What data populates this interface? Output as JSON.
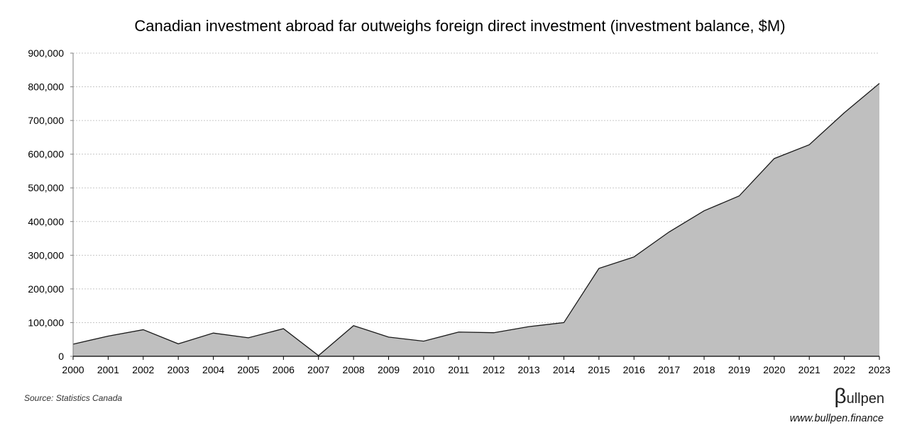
{
  "chart_data": {
    "type": "area",
    "title": "Canadian investment abroad far outweighs foreign direct investment (investment balance, $M)",
    "xlabel": "",
    "ylabel": "",
    "x": [
      "2000",
      "2001",
      "2002",
      "2003",
      "2004",
      "2005",
      "2006",
      "2007",
      "2008",
      "2009",
      "2010",
      "2011",
      "2012",
      "2013",
      "2014",
      "2015",
      "2016",
      "2017",
      "2018",
      "2019",
      "2020",
      "2021",
      "2022",
      "2023"
    ],
    "values": [
      36000,
      60000,
      79000,
      37000,
      69000,
      55000,
      82000,
      2000,
      91000,
      57000,
      45000,
      72000,
      70000,
      88000,
      100000,
      261000,
      295000,
      369000,
      432000,
      476000,
      587000,
      628000,
      723000,
      810000
    ],
    "ylim": [
      0,
      900000
    ],
    "yticks": [
      0,
      100000,
      200000,
      300000,
      400000,
      500000,
      600000,
      700000,
      800000,
      900000
    ],
    "ytick_labels": [
      "0",
      "100,000",
      "200,000",
      "300,000",
      "400,000",
      "500,000",
      "600,000",
      "700,000",
      "800,000",
      "900,000"
    ],
    "grid": true,
    "legend": "none",
    "fill_color": "#bfbfbf",
    "line_color": "#1a1a1a",
    "grid_color": "#c8c8c8"
  },
  "footer": {
    "source": "Source: Statistics Canada",
    "brand_beta": "β",
    "brand_rest": "ullpen",
    "url": "www.bullpen.finance"
  }
}
